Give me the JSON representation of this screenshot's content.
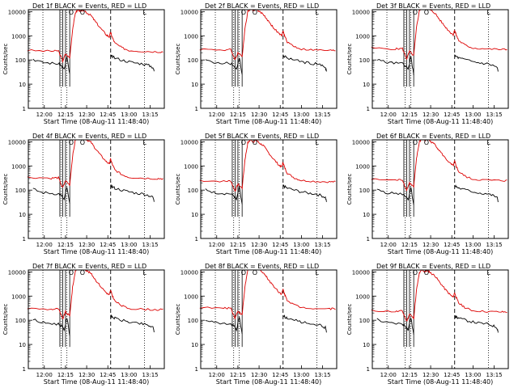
{
  "colors": {
    "events": "#000000",
    "lld": "#dd0000",
    "axis": "#000000"
  },
  "chart_data": [
    {
      "type": "line",
      "title": "Det 1f BLACK = Events, RED = LLD",
      "variant": 0
    },
    {
      "type": "line",
      "title": "Det 2f BLACK = Events, RED = LLD",
      "variant": 1
    },
    {
      "type": "line",
      "title": "Det 3f BLACK = Events, RED = LLD",
      "variant": 2
    },
    {
      "type": "line",
      "title": "Det 4f BLACK = Events, RED = LLD",
      "variant": 3
    },
    {
      "type": "line",
      "title": "Det 5f BLACK = Events, RED = LLD",
      "variant": 4
    },
    {
      "type": "line",
      "title": "Det 6f BLACK = Events, RED = LLD",
      "variant": 5
    },
    {
      "type": "line",
      "title": "Det 7f BLACK = Events, RED = LLD",
      "variant": 6
    },
    {
      "type": "line",
      "title": "Det 8f BLACK = Events, RED = LLD",
      "variant": 7
    },
    {
      "type": "line",
      "title": "Det 9f BLACK = Events, RED = LLD",
      "variant": 8
    }
  ],
  "shared": {
    "xlabel": "Start Time (08-Aug-11 11:48:40)",
    "ylabel": "Counts/sec",
    "yscale": "log",
    "ylim": [
      1,
      12000
    ],
    "xlim": [
      "11:48:40",
      "13:25:00"
    ],
    "x_ticks": [
      "12:00",
      "12:15",
      "12:30",
      "12:45",
      "13:00",
      "13:15"
    ],
    "y_ticks": [
      "1",
      "10",
      "100",
      "1000",
      "10000"
    ],
    "dotted_markers": [
      "11:59",
      "12:12",
      "12:16",
      "13:11"
    ],
    "solid_markers": [
      "12:11",
      "12:13",
      "12:15",
      "12:18"
    ],
    "dashed_marker": "12:47",
    "top_labels": [
      "O",
      "O",
      "L"
    ],
    "series_names": [
      "Events",
      "LLD"
    ],
    "lld_series": {
      "x": [
        "11:48",
        "12:05",
        "12:10",
        "12:13",
        "12:15",
        "12:18",
        "12:20",
        "12:22",
        "12:24",
        "12:26",
        "12:28",
        "12:30",
        "12:33",
        "12:36",
        "12:40",
        "12:44",
        "12:46",
        "12:47",
        "12:48",
        "12:50",
        "12:55",
        "13:00",
        "13:10",
        "13:20",
        "13:25"
      ],
      "y": [
        250,
        230,
        240,
        90,
        180,
        120,
        1800,
        9000,
        12000,
        10000,
        12000,
        9000,
        7000,
        4000,
        2000,
        1100,
        900,
        1400,
        900,
        500,
        320,
        250,
        230,
        220,
        220
      ]
    },
    "events_series": {
      "x": [
        "11:52",
        "11:58",
        "12:04",
        "12:10",
        "12:12",
        "12:14",
        "12:16",
        "12:18",
        "12:47",
        "12:48",
        "12:50",
        "12:55",
        "13:00",
        "13:05",
        "13:10",
        "13:14",
        "13:17",
        "13:18"
      ],
      "y": [
        110,
        80,
        75,
        70,
        60,
        40,
        130,
        25,
        150,
        140,
        120,
        100,
        85,
        75,
        70,
        60,
        50,
        30
      ]
    }
  }
}
